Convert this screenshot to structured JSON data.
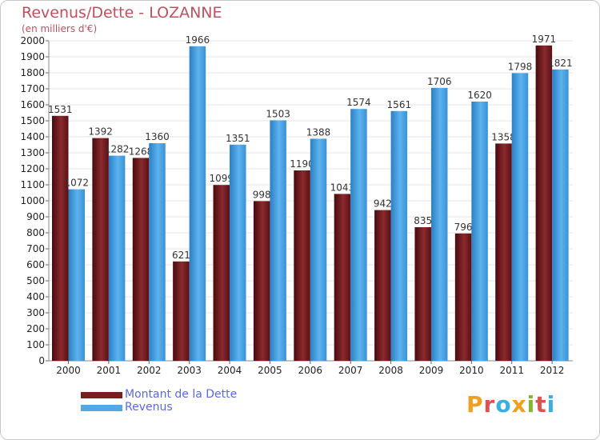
{
  "chart_data": {
    "type": "bar",
    "title": "Revenus/Dette - LOZANNE",
    "subtitle": "(en milliers d'€)",
    "categories": [
      "2000",
      "2001",
      "2002",
      "2003",
      "2004",
      "2005",
      "2006",
      "2007",
      "2008",
      "2009",
      "2010",
      "2011",
      "2012"
    ],
    "series": [
      {
        "name": "Montant de la Dette",
        "color": "#7a1e22",
        "values": [
          1531,
          1392,
          1268,
          621,
          1099,
          998,
          1190,
          1043,
          942,
          835,
          796,
          1358,
          1971
        ]
      },
      {
        "name": "Revenus",
        "color": "#52a9e6",
        "values": [
          1072,
          1282,
          1360,
          1966,
          1351,
          1503,
          1388,
          1574,
          1561,
          1706,
          1620,
          1798,
          1821
        ]
      }
    ],
    "ylim": [
      0,
      2000
    ],
    "ytick_step": 100,
    "grid": true,
    "legend_position": "bottom-left"
  },
  "logo": {
    "text": "Proxiti",
    "colors": [
      "#f0a020",
      "#e05050",
      "#3ab0e0",
      "#f0a020",
      "#80b830",
      "#e05050",
      "#3ab0e0"
    ]
  }
}
